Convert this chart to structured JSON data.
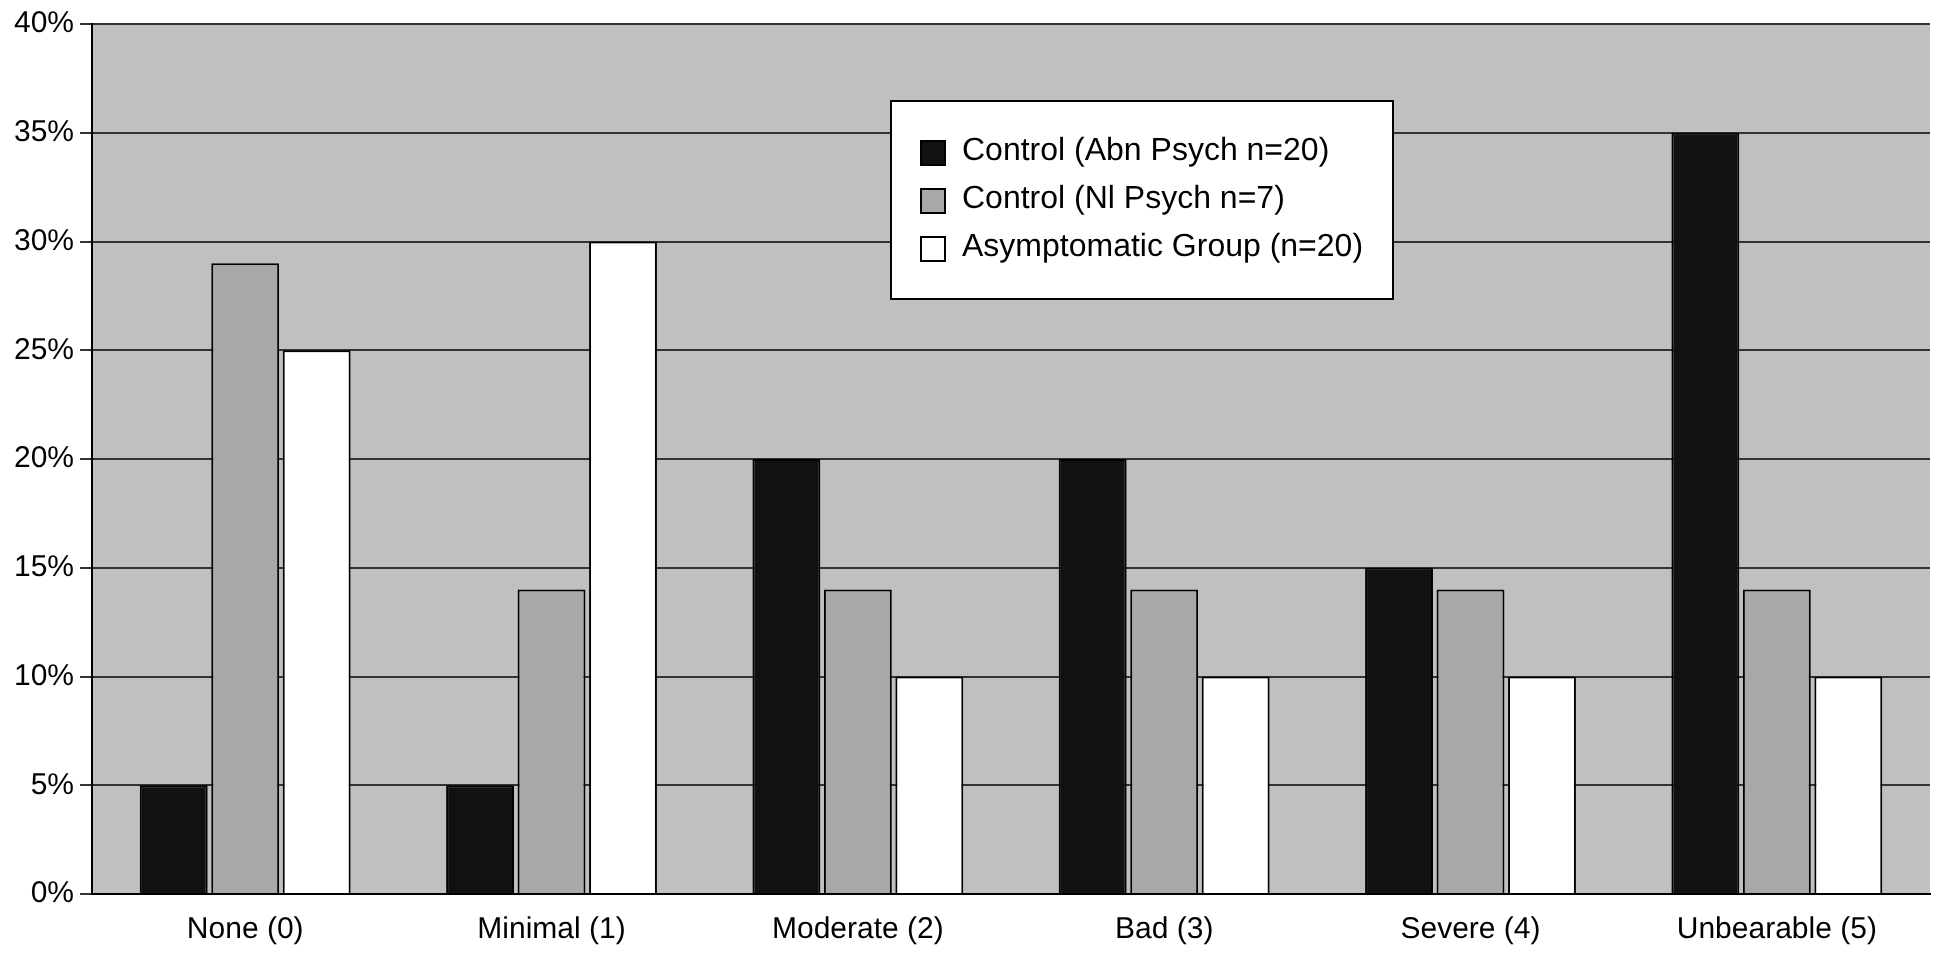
{
  "chart_data": {
    "type": "bar",
    "categories": [
      "None (0)",
      "Minimal (1)",
      "Moderate (2)",
      "Bad (3)",
      "Severe (4)",
      "Unbearable (5)"
    ],
    "series": [
      {
        "name": "Control (Abn Psych n=20)",
        "color": "#111111",
        "values": [
          5,
          5,
          20,
          20,
          15,
          35
        ]
      },
      {
        "name": "Control (Nl Psych n=7)",
        "color": "#a8a8a8",
        "values": [
          29,
          14,
          14,
          14,
          14,
          14
        ]
      },
      {
        "name": "Asymptomatic Group (n=20)",
        "color": "#ffffff",
        "values": [
          25,
          30,
          10,
          10,
          10,
          10
        ]
      }
    ],
    "ylim": [
      0,
      40
    ],
    "yticks": [
      {
        "value": 0,
        "label": "0%"
      },
      {
        "value": 5,
        "label": "5%"
      },
      {
        "value": 10,
        "label": "10%"
      },
      {
        "value": 15,
        "label": "15%"
      },
      {
        "value": 20,
        "label": "20%"
      },
      {
        "value": 25,
        "label": "25%"
      },
      {
        "value": 30,
        "label": "30%"
      },
      {
        "value": 35,
        "label": "35%"
      },
      {
        "value": 40,
        "label": "40%"
      }
    ],
    "grid": "y",
    "legend": "top right"
  }
}
